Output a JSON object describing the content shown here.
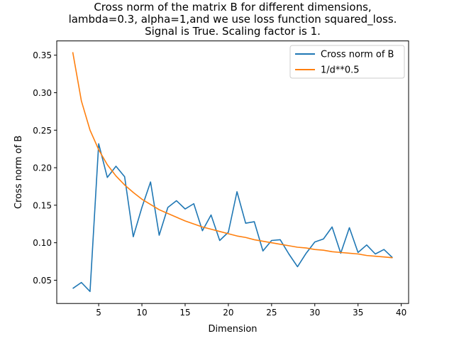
{
  "chart_data": {
    "type": "line",
    "title_lines": [
      "Cross norm of the matrix B for different dimensions,",
      "lambda=0.3, alpha=1,and we use loss function squared_loss.",
      "Signal is True. Scaling factor is 1."
    ],
    "xlabel": "Dimension",
    "ylabel": "Cross norm of B",
    "xlim": [
      0.15,
      40.85
    ],
    "ylim": [
      0.019,
      0.369
    ],
    "xticks": [
      5,
      10,
      15,
      20,
      25,
      30,
      35,
      40
    ],
    "yticks": [
      0.05,
      0.1,
      0.15,
      0.2,
      0.25,
      0.3,
      0.35
    ],
    "xtick_labels": [
      "5",
      "10",
      "15",
      "20",
      "25",
      "30",
      "35",
      "40"
    ],
    "ytick_labels": [
      "0.05",
      "0.10",
      "0.15",
      "0.20",
      "0.25",
      "0.30",
      "0.35"
    ],
    "grid": false,
    "legend_position": "upper right",
    "x": [
      2,
      3,
      4,
      5,
      6,
      7,
      8,
      9,
      10,
      11,
      12,
      13,
      14,
      15,
      16,
      17,
      18,
      19,
      20,
      21,
      22,
      23,
      24,
      25,
      26,
      27,
      28,
      29,
      30,
      31,
      32,
      33,
      34,
      35,
      36,
      37,
      38,
      39
    ],
    "series": [
      {
        "name": "Cross norm of B",
        "color": "#1f77b4",
        "values": [
          0.039,
          0.047,
          0.035,
          0.232,
          0.187,
          0.202,
          0.188,
          0.108,
          0.147,
          0.181,
          0.11,
          0.147,
          0.156,
          0.145,
          0.152,
          0.116,
          0.137,
          0.103,
          0.114,
          0.168,
          0.126,
          0.128,
          0.089,
          0.103,
          0.104,
          0.085,
          0.068,
          0.086,
          0.101,
          0.105,
          0.121,
          0.086,
          0.12,
          0.087,
          0.097,
          0.085,
          0.091,
          0.08
        ]
      },
      {
        "name": "1/d**0.5",
        "color": "#ff7f0e",
        "values": [
          0.354,
          0.289,
          0.25,
          0.224,
          0.204,
          0.189,
          0.177,
          0.167,
          0.158,
          0.151,
          0.144,
          0.139,
          0.134,
          0.129,
          0.125,
          0.121,
          0.118,
          0.115,
          0.112,
          0.109,
          0.107,
          0.104,
          0.102,
          0.1,
          0.098,
          0.096,
          0.094,
          0.093,
          0.091,
          0.09,
          0.088,
          0.087,
          0.086,
          0.085,
          0.083,
          0.082,
          0.081,
          0.08
        ]
      }
    ]
  }
}
